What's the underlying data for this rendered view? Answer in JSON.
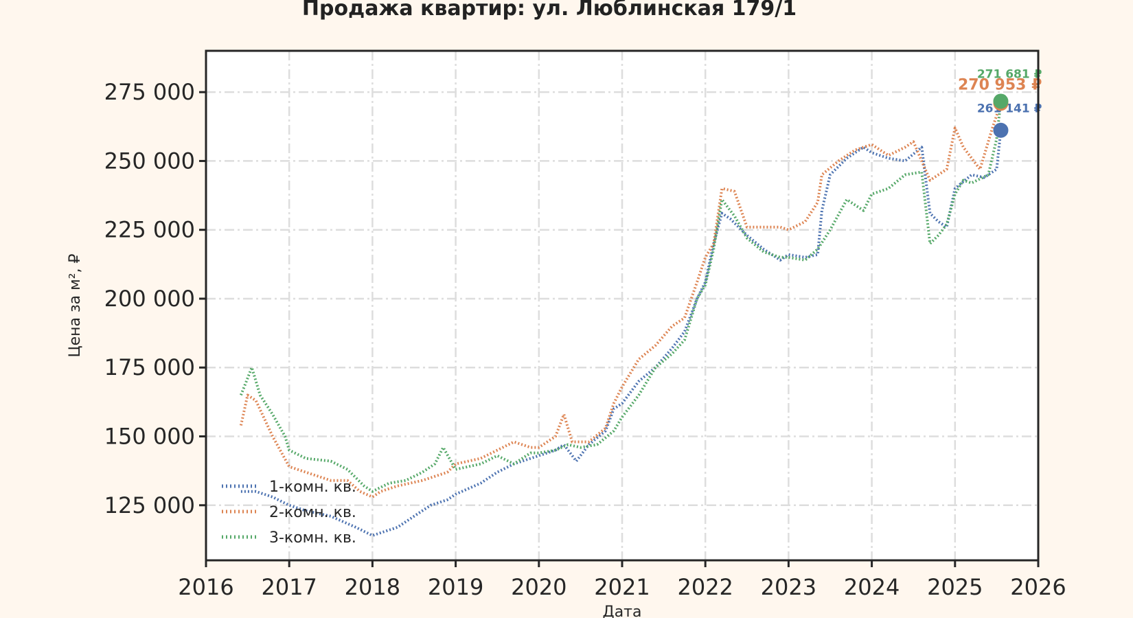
{
  "chart_data": {
    "type": "line",
    "title": "Продажа квартир: ул. Люблинская 179/1",
    "xlabel": "Дата",
    "ylabel": "Цена за м², ₽",
    "xlim": [
      2016,
      2026
    ],
    "ylim": [
      105000,
      290000
    ],
    "x_ticks": [
      "2016",
      "2017",
      "2018",
      "2019",
      "2020",
      "2021",
      "2022",
      "2023",
      "2024",
      "2025",
      "2026"
    ],
    "y_ticks": [
      "125 000",
      "150 000",
      "175 000",
      "200 000",
      "225 000",
      "250 000",
      "275 000"
    ],
    "y_tick_values": [
      125000,
      150000,
      175000,
      200000,
      225000,
      250000,
      275000
    ],
    "grid": true,
    "legend_position": "lower-left",
    "series": [
      {
        "name": "1-комн. кв.",
        "color": "#4c72b0",
        "end_label": "261 141 ₽",
        "end_value": 261141,
        "x": [
          2016.42,
          2016.6,
          2016.8,
          2017.0,
          2017.2,
          2017.5,
          2017.8,
          2018.0,
          2018.1,
          2018.3,
          2018.5,
          2018.7,
          2018.9,
          2019.0,
          2019.3,
          2019.5,
          2019.7,
          2019.9,
          2020.0,
          2020.2,
          2020.3,
          2020.45,
          2020.6,
          2020.8,
          2020.9,
          2021.0,
          2021.2,
          2021.4,
          2021.6,
          2021.75,
          2021.9,
          2022.0,
          2022.1,
          2022.2,
          2022.3,
          2022.5,
          2022.7,
          2022.9,
          2023.0,
          2023.2,
          2023.35,
          2023.4,
          2023.5,
          2023.7,
          2023.9,
          2024.0,
          2024.2,
          2024.4,
          2024.6,
          2024.7,
          2024.8,
          2024.9,
          2025.0,
          2025.2,
          2025.35,
          2025.5,
          2025.55
        ],
        "y": [
          130000,
          130000,
          128000,
          125000,
          123000,
          121000,
          117000,
          114000,
          115000,
          117000,
          121000,
          125000,
          127000,
          129000,
          133000,
          137000,
          140000,
          142000,
          143000,
          145000,
          147000,
          141000,
          147000,
          152000,
          160000,
          162000,
          170000,
          175000,
          182000,
          188000,
          200000,
          206000,
          220000,
          231000,
          229000,
          223000,
          218000,
          214000,
          216000,
          215000,
          216000,
          232000,
          245000,
          251000,
          255000,
          253000,
          251000,
          250000,
          255000,
          231000,
          228000,
          226000,
          240000,
          245000,
          244000,
          247000,
          261141
        ]
      },
      {
        "name": "2-комн. кв.",
        "color": "#dd8452",
        "end_label": "270 953 ₽",
        "end_value": 270953,
        "x": [
          2016.42,
          2016.5,
          2016.6,
          2016.8,
          2017.0,
          2017.2,
          2017.5,
          2017.7,
          2017.85,
          2018.0,
          2018.1,
          2018.3,
          2018.6,
          2018.9,
          2019.0,
          2019.3,
          2019.5,
          2019.7,
          2019.9,
          2020.0,
          2020.2,
          2020.3,
          2020.4,
          2020.6,
          2020.8,
          2020.9,
          2021.0,
          2021.2,
          2021.4,
          2021.6,
          2021.75,
          2021.9,
          2022.0,
          2022.1,
          2022.2,
          2022.35,
          2022.5,
          2022.7,
          2022.9,
          2023.0,
          2023.2,
          2023.35,
          2023.4,
          2023.6,
          2023.8,
          2024.0,
          2024.2,
          2024.4,
          2024.5,
          2024.7,
          2024.9,
          2025.0,
          2025.1,
          2025.3,
          2025.45,
          2025.55
        ],
        "y": [
          154000,
          165000,
          163000,
          150000,
          139000,
          137000,
          134000,
          134000,
          130000,
          128000,
          130000,
          132000,
          134000,
          137000,
          140000,
          142000,
          145000,
          148000,
          146000,
          146000,
          150000,
          158000,
          148000,
          148000,
          153000,
          162000,
          168000,
          178000,
          183000,
          190000,
          193000,
          206000,
          215000,
          220000,
          240000,
          239000,
          226000,
          226000,
          226000,
          225000,
          228000,
          235000,
          245000,
          250000,
          254000,
          256000,
          252000,
          255000,
          257000,
          243000,
          247000,
          262000,
          255000,
          247000,
          262000,
          270953
        ]
      },
      {
        "name": "3-комн. кв.",
        "color": "#55a868",
        "end_label": "271 681 ₽",
        "end_value": 271681,
        "x": [
          2016.42,
          2016.55,
          2016.65,
          2016.8,
          2016.95,
          2017.0,
          2017.2,
          2017.5,
          2017.7,
          2017.9,
          2018.0,
          2018.2,
          2018.4,
          2018.6,
          2018.75,
          2018.85,
          2019.0,
          2019.3,
          2019.5,
          2019.7,
          2019.9,
          2020.0,
          2020.2,
          2020.35,
          2020.5,
          2020.7,
          2020.9,
          2021.0,
          2021.2,
          2021.4,
          2021.6,
          2021.75,
          2021.9,
          2022.0,
          2022.1,
          2022.2,
          2022.35,
          2022.5,
          2022.7,
          2022.9,
          2023.0,
          2023.2,
          2023.35,
          2023.5,
          2023.7,
          2023.9,
          2024.0,
          2024.2,
          2024.4,
          2024.6,
          2024.7,
          2024.8,
          2024.9,
          2025.0,
          2025.1,
          2025.2,
          2025.4,
          2025.5,
          2025.55
        ],
        "y": [
          165000,
          175000,
          165000,
          158000,
          150000,
          145000,
          142000,
          141000,
          138000,
          132000,
          130000,
          133000,
          134000,
          137000,
          140000,
          146000,
          138000,
          140000,
          143000,
          140000,
          144000,
          144000,
          145000,
          147000,
          146000,
          147000,
          152000,
          157000,
          165000,
          175000,
          180000,
          185000,
          200000,
          205000,
          218000,
          236000,
          230000,
          222000,
          217000,
          215000,
          215000,
          214000,
          218000,
          225000,
          236000,
          232000,
          238000,
          240000,
          245000,
          246000,
          220000,
          223000,
          227000,
          238000,
          243000,
          242000,
          245000,
          258000,
          271681
        ]
      }
    ]
  }
}
